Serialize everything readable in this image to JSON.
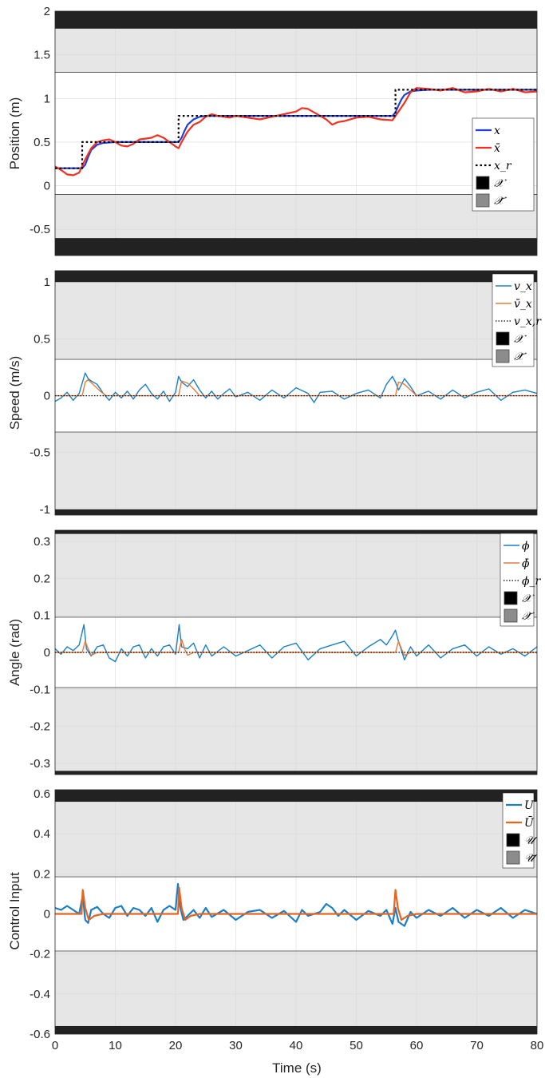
{
  "chart_data": [
    {
      "type": "line",
      "ylabel": "Position (m)",
      "xlim": [
        0,
        80
      ],
      "ylim": [
        -0.8,
        2
      ],
      "yticks": [
        "2",
        "1.5",
        "1",
        "0.5",
        "0",
        "-0.5"
      ],
      "ytick_values": [
        2,
        1.5,
        1,
        0.5,
        0,
        -0.5
      ],
      "hard_bounds": [
        -0.6,
        1.8
      ],
      "soft_bounds": [
        -0.1,
        1.3
      ],
      "legend": [
        "x",
        "x̄",
        "x_r",
        "𝒳",
        "𝒳̄"
      ],
      "series": [
        {
          "name": "x",
          "color": "#1f3fe0",
          "width": 2.2,
          "x": [
            0,
            4.5,
            5,
            5.5,
            6,
            7,
            8,
            10,
            12,
            15,
            18,
            20.5,
            21,
            21.5,
            22,
            23,
            24,
            25,
            27,
            30,
            35,
            40,
            45,
            50,
            56,
            56.5,
            57,
            57.5,
            58,
            59,
            60,
            62,
            65,
            70,
            75,
            80
          ],
          "y": [
            0.2,
            0.2,
            0.24,
            0.33,
            0.41,
            0.47,
            0.49,
            0.5,
            0.5,
            0.5,
            0.5,
            0.5,
            0.55,
            0.63,
            0.7,
            0.76,
            0.79,
            0.8,
            0.8,
            0.8,
            0.8,
            0.8,
            0.8,
            0.8,
            0.8,
            0.84,
            0.92,
            0.99,
            1.04,
            1.08,
            1.09,
            1.1,
            1.1,
            1.1,
            1.1,
            1.1
          ]
        },
        {
          "name": "x̄",
          "color": "#f03020",
          "width": 2.2,
          "x": [
            0,
            1,
            2,
            3,
            4,
            5,
            6,
            7,
            8,
            9,
            10,
            11,
            12,
            13,
            14,
            15,
            16,
            17,
            18,
            19,
            20,
            20.5,
            21,
            22,
            23,
            24,
            25,
            26,
            27,
            28,
            29,
            30,
            32,
            34,
            36,
            38,
            40,
            41,
            42,
            43,
            44,
            45,
            46,
            47,
            48,
            50,
            52,
            54,
            56,
            57,
            58,
            59,
            60,
            62,
            64,
            66,
            68,
            70,
            72,
            74,
            76,
            78,
            80
          ],
          "y": [
            0.22,
            0.18,
            0.13,
            0.12,
            0.15,
            0.3,
            0.43,
            0.5,
            0.52,
            0.53,
            0.5,
            0.46,
            0.45,
            0.48,
            0.53,
            0.54,
            0.55,
            0.58,
            0.55,
            0.5,
            0.45,
            0.43,
            0.5,
            0.62,
            0.7,
            0.73,
            0.79,
            0.82,
            0.8,
            0.79,
            0.78,
            0.8,
            0.78,
            0.76,
            0.79,
            0.82,
            0.85,
            0.89,
            0.88,
            0.84,
            0.8,
            0.76,
            0.7,
            0.73,
            0.74,
            0.78,
            0.79,
            0.76,
            0.75,
            0.85,
            0.95,
            1.07,
            1.12,
            1.11,
            1.09,
            1.12,
            1.07,
            1.08,
            1.11,
            1.08,
            1.11,
            1.07,
            1.08
          ]
        },
        {
          "name": "x_r",
          "color": "#000000",
          "width": 2.2,
          "dash": "2.5,3",
          "step": true,
          "x": [
            0,
            4.5,
            4.5,
            20.5,
            20.5,
            56.5,
            56.5,
            80
          ],
          "y": [
            0.2,
            0.2,
            0.5,
            0.5,
            0.8,
            0.8,
            1.1,
            1.1
          ]
        }
      ]
    },
    {
      "type": "line",
      "ylabel": "Speed (m/s)",
      "xlim": [
        0,
        80
      ],
      "ylim": [
        -1.05,
        1.1
      ],
      "yticks": [
        "1",
        "0.5",
        "0",
        "-0.5",
        "-1"
      ],
      "ytick_values": [
        1,
        0.5,
        0,
        -0.5,
        -1
      ],
      "hard_bounds": [
        -1,
        1
      ],
      "soft_bounds": [
        -0.32,
        0.32
      ],
      "legend": [
        "v_x",
        "v̄_x",
        "v_x,r",
        "𝒳",
        "𝒳̄"
      ],
      "series": [
        {
          "name": "v_x",
          "color": "#1a7fc4",
          "width": 1.4,
          "x": [
            0,
            1,
            2,
            3,
            4,
            5,
            5.5,
            6,
            7,
            8,
            9,
            10,
            11,
            12,
            13,
            14,
            15,
            16,
            17,
            18,
            19,
            20,
            20.5,
            21,
            22,
            23,
            24,
            25,
            26,
            27,
            28,
            29,
            30,
            32,
            34,
            36,
            38,
            40,
            42,
            43,
            44,
            46,
            48,
            50,
            52,
            54,
            55,
            56,
            56.5,
            57,
            58,
            59,
            60,
            62,
            64,
            66,
            68,
            70,
            72,
            74,
            76,
            78,
            80
          ],
          "y": [
            -0.05,
            -0.02,
            0.03,
            -0.04,
            0.02,
            0.2,
            0.15,
            0.13,
            0.1,
            0.02,
            -0.04,
            0.03,
            -0.02,
            0.04,
            -0.03,
            0.05,
            0.1,
            0.02,
            -0.03,
            0.04,
            -0.05,
            0.03,
            0.17,
            0.12,
            0.08,
            0.14,
            0.05,
            -0.02,
            0.04,
            -0.03,
            0.02,
            0.06,
            -0.01,
            0.03,
            -0.04,
            0.05,
            -0.02,
            0.07,
            0.02,
            -0.06,
            0.03,
            0.04,
            -0.03,
            0.02,
            0.05,
            -0.02,
            0.1,
            0.17,
            0.12,
            0.05,
            0.15,
            0.08,
            0.0,
            0.04,
            -0.03,
            0.05,
            -0.02,
            0.03,
            0.06,
            -0.04,
            0.03,
            0.05,
            0.02
          ]
        },
        {
          "name": "v̄_x",
          "color": "#e87a3a",
          "width": 1.4,
          "x": [
            0,
            4.5,
            5,
            5.5,
            6.5,
            7.5,
            8.5,
            20.5,
            21,
            22,
            23,
            24,
            56.5,
            57,
            58,
            59,
            60,
            80
          ],
          "y": [
            0,
            0,
            0.12,
            0.14,
            0.09,
            0.04,
            0,
            0,
            0.13,
            0.11,
            0.06,
            0,
            0,
            0.12,
            0.1,
            0.05,
            0,
            0
          ]
        },
        {
          "name": "v_x,r",
          "color": "#000000",
          "width": 1.2,
          "dash": "1.5,2",
          "x": [
            0,
            80
          ],
          "y": [
            0,
            0
          ]
        }
      ]
    },
    {
      "type": "line",
      "ylabel": "Angle (rad)",
      "xlim": [
        0,
        80
      ],
      "ylim": [
        -0.33,
        0.33
      ],
      "yticks": [
        "0.3",
        "0.2",
        "0.1",
        "0",
        "-0.1",
        "-0.2",
        "-0.3"
      ],
      "ytick_values": [
        0.3,
        0.2,
        0.1,
        0,
        -0.1,
        -0.2,
        -0.3
      ],
      "hard_bounds": [
        -0.32,
        0.32
      ],
      "soft_bounds": [
        -0.095,
        0.095
      ],
      "legend": [
        "ϕ",
        "ϕ̄",
        "ϕ_r",
        "𝒳",
        "𝒳̄"
      ],
      "series": [
        {
          "name": "ϕ",
          "color": "#1a7fc4",
          "width": 1.4,
          "x": [
            0,
            1,
            2,
            3,
            4,
            4.8,
            5.2,
            6,
            7,
            8,
            9,
            10,
            11,
            12,
            13,
            14,
            15,
            16,
            17,
            18,
            19,
            20,
            20.6,
            21,
            22,
            23,
            24,
            25,
            26,
            28,
            30,
            32,
            34,
            36,
            38,
            40,
            42,
            44,
            46,
            48,
            50,
            52,
            54,
            55,
            56,
            56.5,
            57,
            58,
            59,
            60,
            62,
            64,
            66,
            68,
            70,
            72,
            74,
            76,
            78,
            80
          ],
          "y": [
            0.01,
            -0.005,
            0.015,
            0.005,
            0.02,
            0.075,
            0.01,
            -0.01,
            0.015,
            0.02,
            -0.015,
            -0.025,
            0.01,
            -0.01,
            0.015,
            0.02,
            -0.015,
            0.01,
            -0.01,
            0.015,
            0.02,
            -0.005,
            0.075,
            0.015,
            0.01,
            0.025,
            -0.015,
            0.02,
            -0.01,
            0.015,
            -0.01,
            0.005,
            0.02,
            -0.015,
            0.015,
            0.025,
            -0.02,
            0.01,
            0.02,
            0.03,
            -0.01,
            0.015,
            0.035,
            0.02,
            0.045,
            0.06,
            0.03,
            -0.02,
            0.015,
            -0.01,
            0.02,
            -0.015,
            0.01,
            0.02,
            -0.01,
            0.015,
            -0.005,
            0.01,
            -0.01,
            0.015
          ]
        },
        {
          "name": "ϕ̄",
          "color": "#e87a3a",
          "width": 1.4,
          "x": [
            0,
            4.5,
            5,
            5.5,
            6,
            7,
            20.5,
            21,
            21.5,
            22,
            23,
            56.5,
            57,
            57.5,
            58,
            59,
            80
          ],
          "y": [
            0,
            0,
            0.03,
            0.01,
            -0.008,
            0,
            0,
            0.035,
            0.01,
            -0.008,
            0,
            0,
            0.03,
            0.01,
            -0.008,
            0,
            0
          ]
        },
        {
          "name": "ϕ_r",
          "color": "#000000",
          "width": 1.2,
          "dash": "1.5,2",
          "x": [
            0,
            80
          ],
          "y": [
            0,
            0
          ]
        }
      ]
    },
    {
      "type": "line",
      "ylabel": "Control Input",
      "xlabel": "Time (s)",
      "xlim": [
        0,
        80
      ],
      "ylim": [
        -0.6,
        0.62
      ],
      "yticks": [
        "0.6",
        "0.4",
        "0.2",
        "0",
        "-0.2",
        "-0.4",
        "-0.6"
      ],
      "ytick_values": [
        0.6,
        0.4,
        0.2,
        0,
        -0.2,
        -0.4,
        -0.6
      ],
      "xticks": [
        "0",
        "10",
        "20",
        "30",
        "40",
        "50",
        "60",
        "70",
        "80"
      ],
      "xtick_values": [
        0,
        10,
        20,
        30,
        40,
        50,
        60,
        70,
        80
      ],
      "hard_bounds": [
        -0.56,
        0.56
      ],
      "soft_bounds": [
        -0.185,
        0.185
      ],
      "legend": [
        "U",
        "Ū",
        "𝒰",
        "𝒰̄"
      ],
      "series": [
        {
          "name": "U",
          "color": "#1a7fc4",
          "width": 2.2,
          "x": [
            0,
            1,
            2,
            3,
            4,
            4.6,
            5,
            5.5,
            6,
            7,
            8,
            9,
            10,
            11,
            12,
            13,
            14,
            15,
            16,
            17,
            18,
            19,
            20,
            20.4,
            20.8,
            21.3,
            22,
            23,
            24,
            25,
            26,
            28,
            30,
            32,
            34,
            36,
            38,
            40,
            41,
            42,
            44,
            45,
            46,
            47,
            48,
            50,
            52,
            54,
            55,
            56,
            56.5,
            57,
            58,
            59,
            60,
            62,
            64,
            66,
            68,
            70,
            72,
            74,
            76,
            78,
            80
          ],
          "y": [
            0.03,
            0.02,
            0.04,
            0.02,
            0.0,
            0.09,
            -0.03,
            -0.045,
            0.02,
            0.035,
            0.0,
            -0.02,
            0.03,
            0.04,
            -0.01,
            0.03,
            0.02,
            -0.01,
            0.03,
            -0.04,
            0.02,
            0.04,
            0.02,
            0.15,
            0.03,
            -0.03,
            -0.01,
            0.02,
            -0.02,
            0.03,
            -0.015,
            0.02,
            -0.03,
            0.01,
            0.02,
            -0.02,
            0.015,
            -0.04,
            0.02,
            -0.01,
            0.01,
            0.05,
            0.03,
            -0.01,
            0.02,
            -0.03,
            0.015,
            -0.01,
            0.02,
            -0.05,
            0.03,
            -0.04,
            -0.06,
            0.01,
            -0.02,
            0.02,
            -0.01,
            0.03,
            -0.02,
            0.02,
            -0.01,
            0.03,
            -0.02,
            0.02,
            0.0
          ]
        },
        {
          "name": "Ū",
          "color": "#e8641e",
          "width": 2.2,
          "x": [
            0,
            4.4,
            4.6,
            5,
            5.6,
            6.5,
            8,
            20.4,
            20.6,
            21,
            21.6,
            22.5,
            24,
            56.2,
            56.5,
            56.9,
            57.5,
            58.5,
            60,
            80
          ],
          "y": [
            0,
            0,
            0.12,
            0.03,
            -0.03,
            -0.01,
            0,
            0,
            0.13,
            0.03,
            -0.03,
            -0.01,
            0,
            0,
            0.12,
            0.03,
            -0.03,
            -0.01,
            0,
            0
          ]
        }
      ]
    }
  ]
}
